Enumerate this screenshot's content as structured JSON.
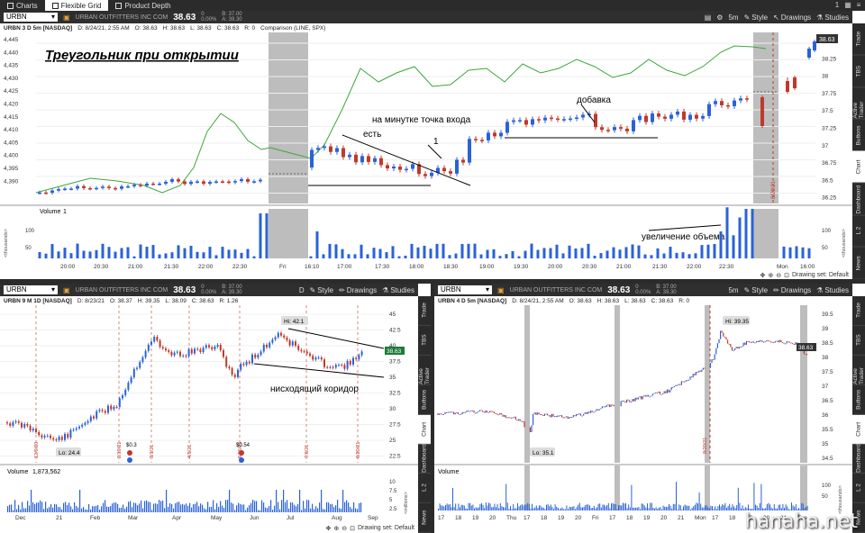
{
  "tabs": [
    {
      "label": "Charts",
      "active": false
    },
    {
      "label": "Flexible Grid",
      "active": true
    },
    {
      "label": "Product Depth",
      "active": false
    }
  ],
  "window_controls": [
    "1",
    "▦",
    "≡"
  ],
  "top": {
    "symbol": "URBN",
    "company": "URBAN OUTFITTERS INC COM",
    "price": "38.63",
    "change_abs": "0",
    "change_pct": "0.00%",
    "bid": "B: 37.00",
    "ask": "A: 39.30",
    "period": "5m",
    "style_label": "Style",
    "drawings_label": "Drawings",
    "studies_label": "Studies",
    "info": {
      "title": "URBN 3 D 5m [NASDAQ]",
      "date": "D: 8/24/21, 2:55 AM",
      "open": "O: 38.63",
      "high": "H: 38.63",
      "low": "L: 38.63",
      "close": "C: 38.63",
      "range": "R: 0",
      "comparison": "Comparison (LINE, SPX)"
    },
    "annotation_title": "Треугольник при открытии",
    "annotations": [
      "на минутке точка входа",
      "есть",
      "1",
      "добавка",
      "увеличение объема"
    ],
    "volume_label": "Volume",
    "volume_value": "1",
    "price_tag": "38.63",
    "date_marker": "8/20/21",
    "left_axis": [
      "4,445",
      "4,440",
      "4,435",
      "4,430",
      "4,425",
      "4,420",
      "4,415",
      "4,410",
      "4,405",
      "4,400",
      "4,395",
      "4,390"
    ],
    "right_axis": [
      "38.5",
      "38.25",
      "38",
      "37.75",
      "37.5",
      "37.25",
      "37",
      "36.75",
      "36.5",
      "36.25"
    ],
    "vol_axis_left": [
      "100",
      "50"
    ],
    "vol_axis_right": [
      "100",
      "50"
    ],
    "vol_unit": "<thousands>",
    "time_axis": [
      "20:00",
      "20:30",
      "21:00",
      "21:30",
      "22:00",
      "22:30",
      "Fri",
      "16:10",
      "17:00",
      "17:30",
      "18:00",
      "18:30",
      "19:00",
      "19:30",
      "20:00",
      "20:30",
      "21:00",
      "21:30",
      "22:00",
      "22:30",
      "Mon",
      "16:00"
    ],
    "drawing_set": "Drawing set: Default"
  },
  "bl": {
    "symbol": "URBN",
    "company": "URBAN OUTFITTERS INC COM",
    "price": "38.63",
    "change_abs": "0",
    "change_pct": "0.00%",
    "bid": "B: 37.00",
    "ask": "A: 39.30",
    "period": "D",
    "style_label": "Style",
    "drawings_label": "Drawings",
    "studies_label": "Studies",
    "info": {
      "title": "URBN 9 M 1D [NASDAQ]",
      "date": "D: 8/23/21",
      "open": "O: 38.37",
      "high": "H: 39.35",
      "low": "L: 38.09",
      "close": "C: 38.63",
      "range": "R: 1.26"
    },
    "annotation": "нисходящий коридор",
    "hi": "Hi: 42.1",
    "lo": "Lo: 24.4",
    "events": [
      "$0.3",
      "$0.54"
    ],
    "date_markers": [
      "12/9/20",
      "2/19/21",
      "3/1/21",
      "4/5/21",
      "5/26/21",
      "7/6/21",
      "8/20/21"
    ],
    "right_axis": [
      "45",
      "42.5",
      "40",
      "37.5",
      "35",
      "32.5",
      "30",
      "27.5",
      "25",
      "22.5"
    ],
    "volume_label": "Volume",
    "volume_value": "1,873,562",
    "vol_axis": [
      "10",
      "7.5",
      "5",
      "2.5"
    ],
    "vol_unit": "<millions>",
    "time_axis": [
      "Dec",
      "21",
      "Feb",
      "Mar",
      "Apr",
      "May",
      "Jun",
      "Jul",
      "Aug",
      "Sep"
    ],
    "price_tag": "38.63",
    "drawing_set": "Drawing set: Default"
  },
  "br": {
    "symbol": "URBN",
    "company": "URBAN OUTFITTERS INC COM",
    "price": "38.63",
    "change_abs": "0",
    "change_pct": "0.00%",
    "bid": "B: 37.00",
    "ask": "A: 39.30",
    "period": "5m",
    "style_label": "Style",
    "drawings_label": "Drawings",
    "studies_label": "Studies",
    "info": {
      "title": "URBN 4 D 5m [NASDAQ]",
      "date": "D: 8/24/21, 2:55 AM",
      "open": "O: 38.63",
      "high": "H: 38.63",
      "low": "L: 38.63",
      "close": "C: 38.63",
      "range": "R: 0"
    },
    "hi": "Hi: 39.35",
    "lo": "Lo: 35.1",
    "date_marker": "8/20/21",
    "right_axis": [
      "39.5",
      "39",
      "38.5",
      "38",
      "37.5",
      "37",
      "36.5",
      "36",
      "35.5",
      "35",
      "34.5"
    ],
    "volume_label": "Volume",
    "vol_axis": [
      "100",
      "50"
    ],
    "vol_unit": "<thousands>",
    "time_axis": [
      "17",
      "18",
      "19",
      "20",
      "Thu",
      "17",
      "18",
      "19",
      "20",
      "Fri",
      "17",
      "18",
      "19",
      "20",
      "21",
      "Mon",
      "17",
      "18",
      "19",
      "20",
      "21",
      "Tue"
    ],
    "price_tag": "38.63"
  },
  "sidebar_top": [
    "Trade",
    "TBS",
    "Active Trader",
    "Buttons",
    "Chart",
    "Dashboard",
    "L 2",
    "News"
  ],
  "sidebar_bl": [
    "Trade",
    "TBS",
    "Active Trader",
    "Buttons",
    "Chart",
    "Dashboard",
    "L 2",
    "News"
  ],
  "sidebar_br": [
    "Trade",
    "TBS",
    "Active Trader",
    "Buttons",
    "Chart",
    "Dashboard",
    "L 2",
    "News"
  ],
  "watermark": "hanaha.net",
  "colors": {
    "up": "#2a62d8",
    "down": "#c0392b",
    "compare": "#3aa83a",
    "shade": "#bdbdbd",
    "bar": "#2b2b2b"
  }
}
